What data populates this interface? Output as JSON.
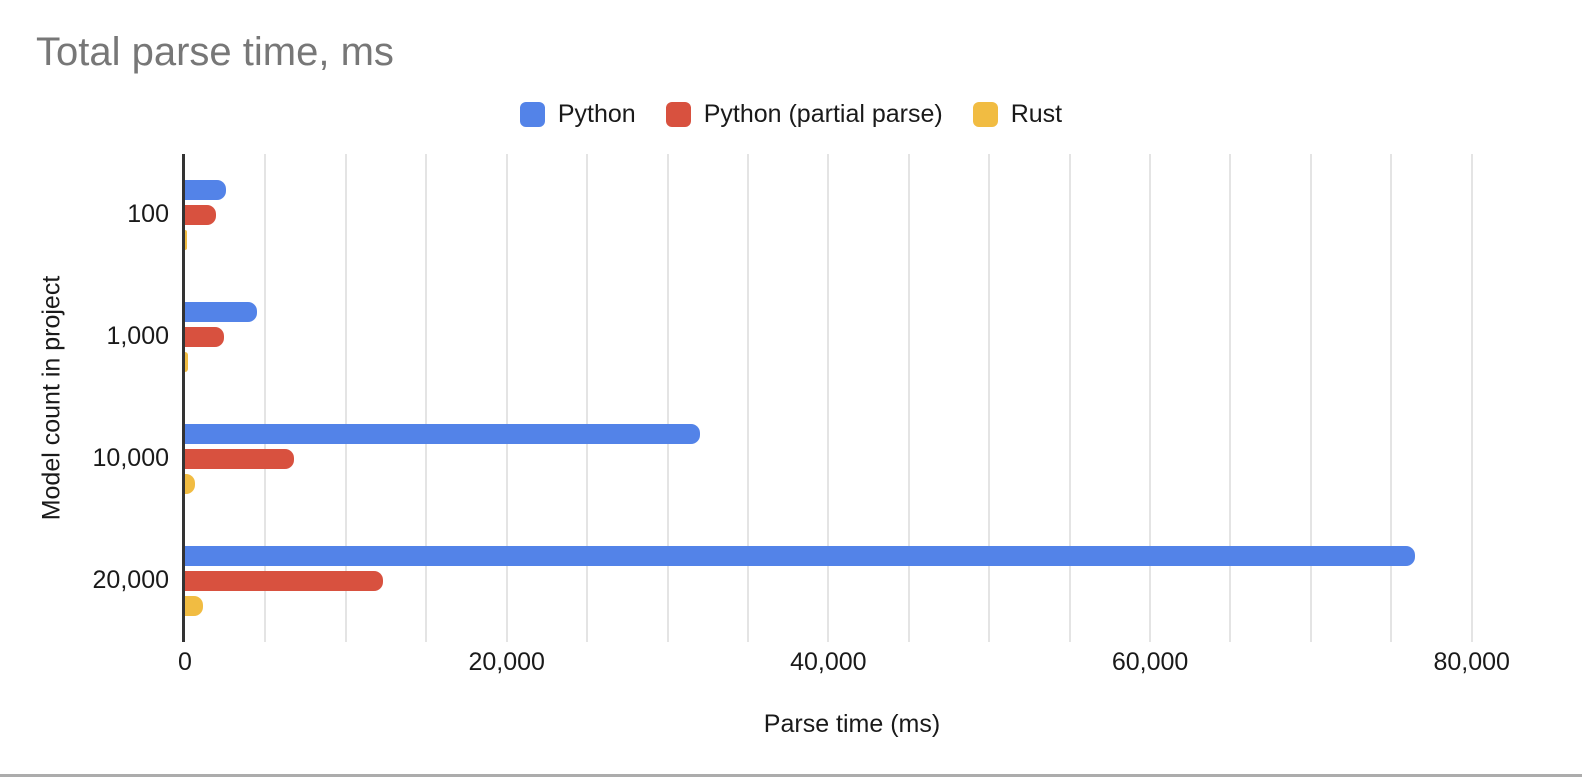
{
  "chart": {
    "title": "Total parse time, ms",
    "x_axis_title": "Parse time (ms)",
    "y_axis_title": "Model count in project"
  },
  "colors": {
    "background": "#ffffff",
    "title_text": "#777777",
    "axis_text": "#1a1a1a",
    "axis_line": "#333333",
    "gridline": "#e4e4e4",
    "series_blue": "#5383E8",
    "series_red": "#D8513F",
    "series_yellow": "#F1BC42"
  },
  "chart_data": {
    "type": "bar",
    "orientation": "horizontal",
    "title": "Total parse time, ms",
    "xlabel": "Parse time (ms)",
    "ylabel": "Model count in project",
    "categories": [
      "100",
      "1,000",
      "10,000",
      "20,000"
    ],
    "series": [
      {
        "name": "Python",
        "color": "#5383E8",
        "values": [
          2550,
          4500,
          32000,
          76500
        ]
      },
      {
        "name": "Python (partial parse)",
        "color": "#D8513F",
        "values": [
          1900,
          2400,
          6800,
          12300
        ]
      },
      {
        "name": "Rust",
        "color": "#F1BC42",
        "values": [
          120,
          180,
          650,
          1100
        ]
      }
    ],
    "xlim": [
      0,
      83000
    ],
    "x_ticks": [
      0,
      20000,
      40000,
      60000,
      80000
    ],
    "x_tick_labels": [
      "0",
      "20,000",
      "40,000",
      "60,000",
      "80,000"
    ],
    "gridline_interval": 5000,
    "grid": true,
    "legend_position": "top-center"
  }
}
